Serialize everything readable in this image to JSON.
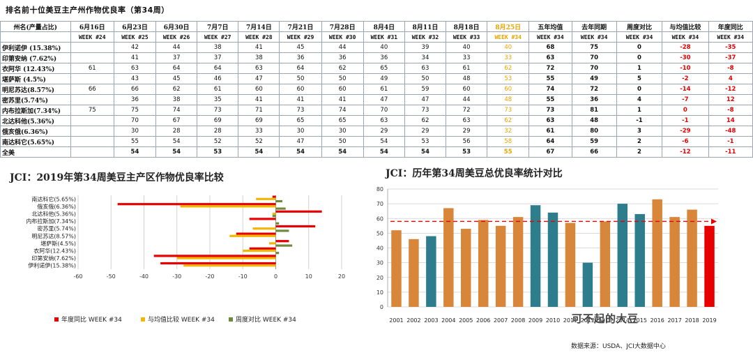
{
  "table": {
    "title": "排名前十位美豆主产州作物优良率（第34周）",
    "headers": [
      "州名(产量占比)",
      "6月16日",
      "6月23日",
      "6月30日",
      "7月7日",
      "7月14日",
      "7月21日",
      "7月28日",
      "8月4日",
      "8月11日",
      "8月18日",
      "8月25日",
      "五年均值",
      "去年同期",
      "周度对比",
      "与均值比较",
      "年度同比"
    ],
    "weeks": [
      "",
      "WEEK #24",
      "WEEK #25",
      "WEEK #26",
      "WEEK #27",
      "WEEK #28",
      "WEEK #29",
      "WEEK #30",
      "WEEK #31",
      "WEEK #32",
      "WEEK #33",
      "WEEK #34",
      "WEEK #34",
      "WEEK #34",
      "WEEK #34",
      "WEEK #34",
      "WEEK #34"
    ],
    "rows": [
      [
        "伊利诺伊 (15.38%)",
        "",
        "42",
        "44",
        "38",
        "41",
        "45",
        "44",
        "40",
        "39",
        "40",
        "40",
        "68",
        "75",
        "0",
        "-28",
        "-35"
      ],
      [
        "印第安纳 (7.62%)",
        "",
        "41",
        "37",
        "37",
        "38",
        "36",
        "36",
        "36",
        "34",
        "33",
        "33",
        "63",
        "70",
        "0",
        "-30",
        "-37"
      ],
      [
        "衣阿华 (12.43%)",
        "61",
        "63",
        "64",
        "64",
        "63",
        "64",
        "62",
        "65",
        "63",
        "61",
        "62",
        "72",
        "70",
        "1",
        "-10",
        "-8"
      ],
      [
        "堪萨斯 (4.5%)",
        "",
        "43",
        "45",
        "46",
        "47",
        "50",
        "50",
        "49",
        "50",
        "48",
        "53",
        "55",
        "49",
        "5",
        "-2",
        "4"
      ],
      [
        "明尼苏达(8.57%)",
        "66",
        "66",
        "62",
        "61",
        "60",
        "60",
        "60",
        "61",
        "59",
        "60",
        "60",
        "74",
        "72",
        "0",
        "-14",
        "-12"
      ],
      [
        "密苏里(5.74%)",
        "",
        "36",
        "38",
        "35",
        "41",
        "41",
        "41",
        "47",
        "47",
        "44",
        "48",
        "55",
        "36",
        "4",
        "-7",
        "12"
      ],
      [
        "内布拉斯加(7.34%)",
        "75",
        "75",
        "74",
        "73",
        "71",
        "73",
        "74",
        "70",
        "73",
        "72",
        "73",
        "73",
        "81",
        "1",
        "0",
        "-8"
      ],
      [
        "北达科他(5.36%)",
        "",
        "70",
        "67",
        "69",
        "69",
        "65",
        "65",
        "63",
        "62",
        "63",
        "62",
        "63",
        "48",
        "-1",
        "-1",
        "14"
      ],
      [
        "俄亥俄(6.36%)",
        "",
        "30",
        "28",
        "28",
        "33",
        "30",
        "30",
        "29",
        "29",
        "29",
        "32",
        "61",
        "80",
        "3",
        "-29",
        "-48"
      ],
      [
        "南达科它(5.65%)",
        "",
        "55",
        "54",
        "52",
        "52",
        "47",
        "50",
        "54",
        "53",
        "56",
        "58",
        "64",
        "59",
        "2",
        "-6",
        "-1"
      ],
      [
        "全美",
        "",
        "54",
        "54",
        "53",
        "54",
        "54",
        "54",
        "54",
        "54",
        "53",
        "55",
        "67",
        "66",
        "2",
        "-12",
        "-11"
      ]
    ]
  },
  "colors": {
    "red": "#e60000",
    "yellow": "#f2b705",
    "green": "#6e8b3d",
    "teal": "#2e7d8c",
    "orange": "#d8863a",
    "highlight": "#e8a400"
  },
  "left_title": "JCI：2019年第34周美豆主产区作物优良率比较",
  "right_title": "JCI：历年第34周美豆总优良率统计对比",
  "source": "数据来源：USDA、JCI大数据中心",
  "watermark": "可不起的大豆",
  "chart_data": [
    {
      "type": "bar",
      "orientation": "horizontal",
      "title": "JCI：2019年第34周美豆主产区作物优良率比较",
      "categories": [
        "伊利诺伊(15.38%)",
        "印第安纳(7.62%)",
        "衣阿华(12.43%)",
        "堪萨斯(4.5%)",
        "明尼苏达(8.57%)",
        "密苏里(5.74%)",
        "内布拉斯加(7.34%)",
        "北达科他(5.36%)",
        "俄亥俄(6.36%)",
        "南达科它(5.65%)"
      ],
      "series": [
        {
          "name": "年度同比 WEEK #34",
          "color": "#e60000",
          "values": [
            -35,
            -37,
            -8,
            4,
            -12,
            12,
            -8,
            14,
            -48,
            -1
          ]
        },
        {
          "name": "与均值比较 WEEK #34",
          "color": "#f2b705",
          "values": [
            -28,
            -30,
            -10,
            -2,
            -14,
            -7,
            0,
            -1,
            -29,
            -6
          ]
        },
        {
          "name": "周度对比 WEEK #34",
          "color": "#6e8b3d",
          "values": [
            0,
            0,
            1,
            5,
            0,
            4,
            1,
            -1,
            3,
            2
          ]
        }
      ],
      "xlim": [
        -60,
        20
      ],
      "xticks": [
        -60,
        -50,
        -40,
        -30,
        -20,
        -10,
        0,
        10,
        20
      ],
      "grid": true,
      "legend": "bottom"
    },
    {
      "type": "bar",
      "title": "JCI：历年第34周美豆总优良率统计对比",
      "categories": [
        "2001",
        "2002",
        "2003",
        "2004",
        "2005",
        "2006",
        "2007",
        "2008",
        "2009",
        "2010",
        "2011",
        "2012",
        "2013",
        "2014",
        "2015",
        "2016",
        "2017",
        "2018",
        "2019"
      ],
      "values": [
        52,
        46,
        48,
        67,
        53,
        59,
        55,
        61,
        69,
        64,
        57,
        30,
        58,
        70,
        63,
        73,
        61,
        66,
        55
      ],
      "bar_colors": [
        "orange",
        "orange",
        "teal",
        "orange",
        "orange",
        "orange",
        "orange",
        "orange",
        "teal",
        "teal",
        "orange",
        "teal",
        "orange",
        "teal",
        "teal",
        "orange",
        "orange",
        "orange",
        "red"
      ],
      "ylim": [
        0,
        80
      ],
      "yticks": [
        0,
        10,
        20,
        30,
        40,
        50,
        60,
        70,
        80
      ],
      "reference_line": 58,
      "grid": true
    }
  ]
}
